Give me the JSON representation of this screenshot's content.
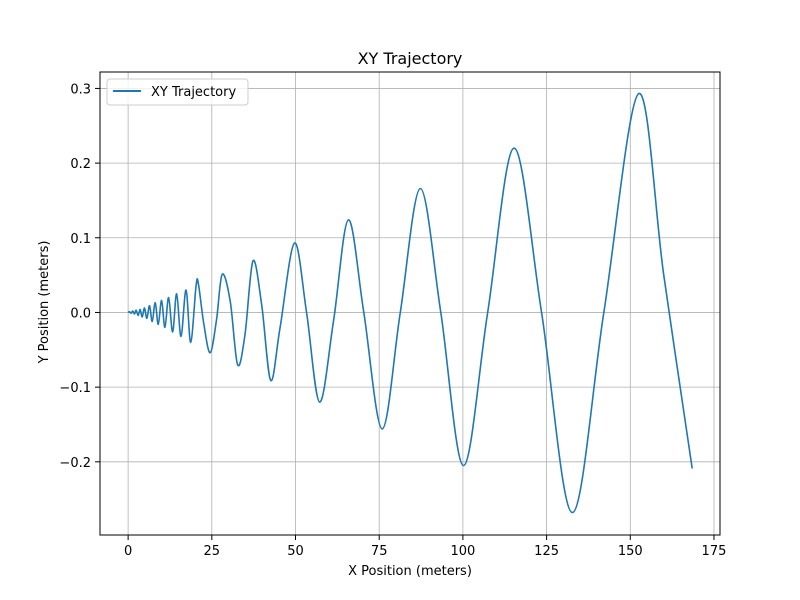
{
  "chart_data": {
    "type": "line",
    "title": "XY Trajectory",
    "xlabel": "X Position (meters)",
    "ylabel": "Y Position (meters)",
    "xlim": [
      -8.4,
      176.8
    ],
    "ylim": [
      -0.298,
      0.322
    ],
    "xticks": [
      0,
      25,
      50,
      75,
      100,
      125,
      150,
      175
    ],
    "yticks": [
      -0.2,
      -0.1,
      0.0,
      0.1,
      0.2,
      0.3
    ],
    "xtick_labels": [
      "0",
      "25",
      "50",
      "75",
      "100",
      "125",
      "150",
      "175"
    ],
    "ytick_labels": [
      "−0.2",
      "−0.1",
      "0.0",
      "0.1",
      "0.2",
      "0.3"
    ],
    "grid": true,
    "legend": {
      "position": "upper-left",
      "entries": [
        "XY Trajectory"
      ]
    },
    "series": [
      {
        "name": "XY Trajectory",
        "color": "#1f77b4",
        "x": [
          0.0,
          0.4,
          0.9,
          1.4,
          1.9,
          2.4,
          3.0,
          3.6,
          4.2,
          4.9,
          5.6,
          6.4,
          7.2,
          8.1,
          9.0,
          10.0,
          11.0,
          12.1,
          13.3,
          14.5,
          15.8,
          17.3,
          18.7,
          20.3,
          21.0,
          22.6,
          24.5,
          26.4,
          28.1,
          30.5,
          32.7,
          34.9,
          37.3,
          39.9,
          42.6,
          45.4,
          49.7,
          53.3,
          57.2,
          61.4,
          65.8,
          70.4,
          75.9,
          81.3,
          87.3,
          93.4,
          100.2,
          107.4,
          115.3,
          123.5,
          132.7,
          142.1,
          152.5,
          160.0,
          168.5
        ],
        "y": [
          0.0,
          0.001,
          -0.001,
          0.002,
          -0.002,
          0.003,
          -0.004,
          0.004,
          -0.006,
          0.006,
          -0.008,
          0.009,
          -0.012,
          0.013,
          -0.016,
          0.016,
          -0.02,
          0.02,
          -0.026,
          0.025,
          -0.032,
          0.03,
          -0.04,
          0.036,
          0.038,
          -0.015,
          -0.054,
          -0.01,
          0.051,
          0.015,
          -0.07,
          -0.03,
          0.069,
          0.01,
          -0.091,
          -0.02,
          0.093,
          0.0,
          -0.12,
          -0.01,
          0.124,
          0.0,
          -0.156,
          0.0,
          0.166,
          0.0,
          -0.205,
          0.0,
          0.22,
          0.0,
          -0.268,
          0.0,
          0.293,
          0.05,
          -0.209
        ]
      }
    ]
  }
}
